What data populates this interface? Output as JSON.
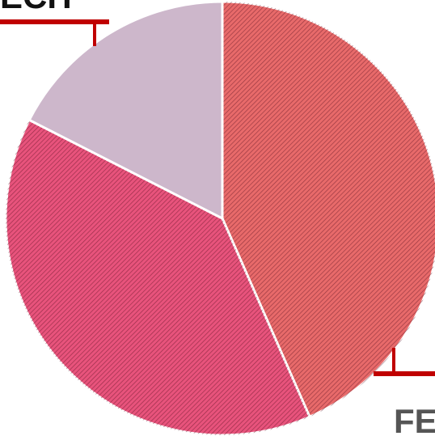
{
  "chart_data": {
    "type": "pie",
    "categories": [
      "FE",
      null,
      "ECH"
    ],
    "values": [
      43.4,
      39.1,
      17.5
    ],
    "colors": [
      "#e86a6a",
      "#e8537c",
      "#cdb7cb"
    ],
    "hatched": [
      true,
      true,
      false
    ]
  }
}
